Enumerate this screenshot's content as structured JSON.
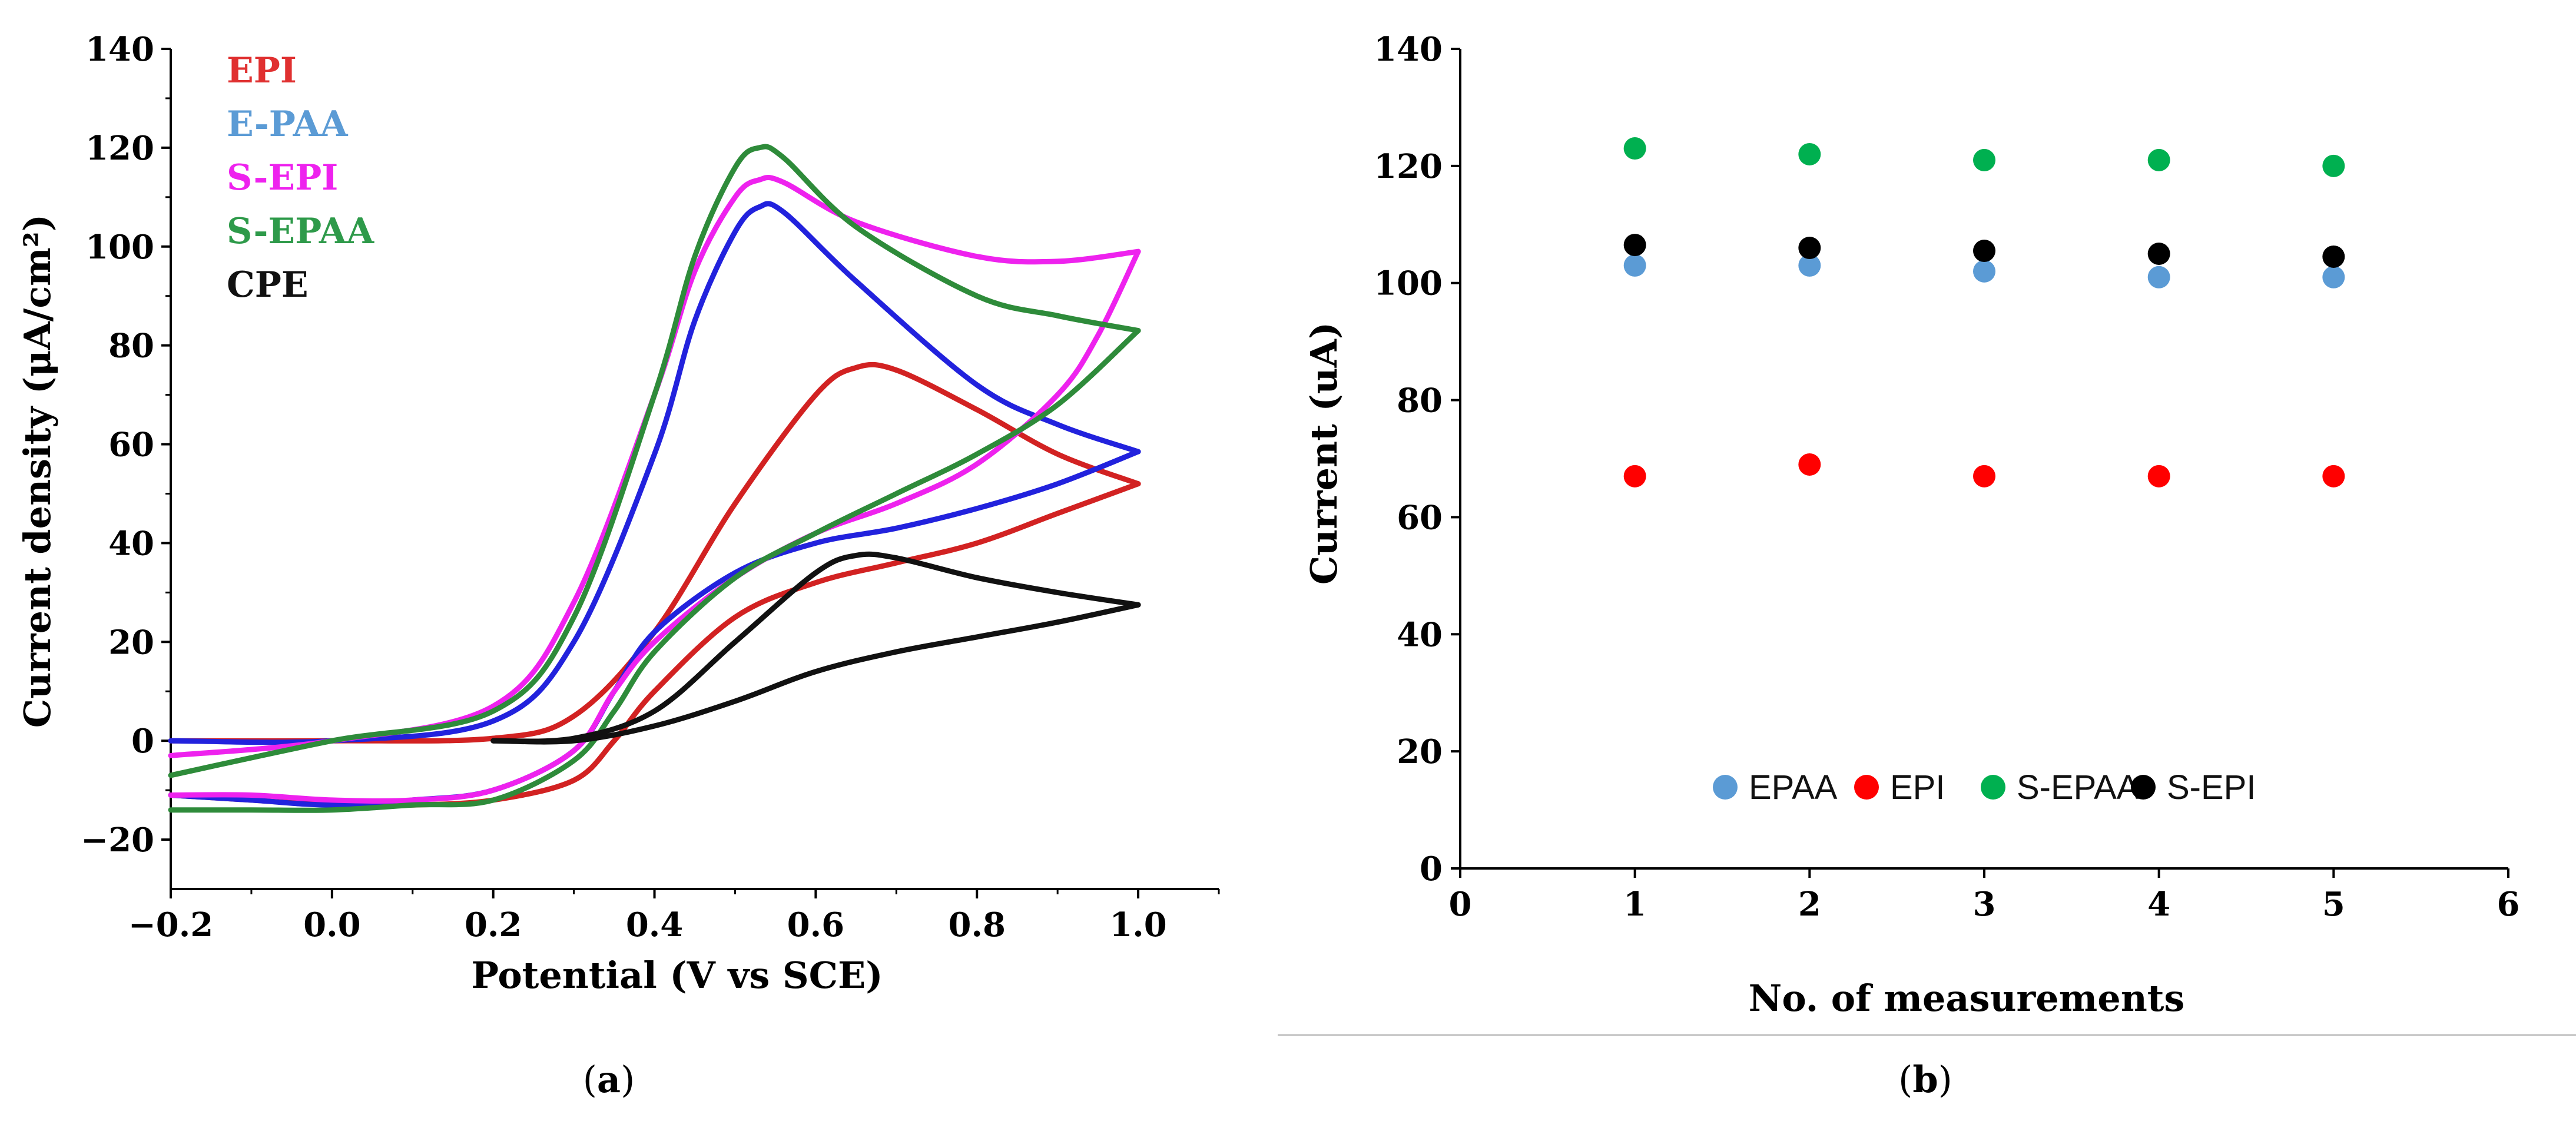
{
  "panels": {
    "a": {
      "caption_open": "(",
      "caption_letter": "a",
      "caption_close": ")"
    },
    "b": {
      "caption_open": "(",
      "caption_letter": "b",
      "caption_close": ")"
    }
  },
  "chart_data": [
    {
      "type": "line",
      "title": "",
      "xlabel": "Potential (V vs SCE)",
      "ylabel": "Current density (μA/cm²)",
      "xlim": [
        -0.2,
        1.1
      ],
      "ylim": [
        -30,
        140
      ],
      "xticks": [
        -0.2,
        0.0,
        0.2,
        0.4,
        0.6,
        0.8,
        1.0
      ],
      "xtick_labels": [
        "−0.2",
        "0.0",
        "0.2",
        "0.4",
        "0.6",
        "0.8",
        "1.0"
      ],
      "yticks": [
        -20,
        0,
        20,
        40,
        60,
        80,
        100,
        120,
        140
      ],
      "ytick_labels": [
        "−20",
        "0",
        "20",
        "40",
        "60",
        "80",
        "100",
        "120",
        "140"
      ],
      "legend": [
        {
          "label": "EPI",
          "color": "#e03030"
        },
        {
          "label": "E-PAA",
          "color": "#5b9bd5"
        },
        {
          "label": "S-EPI",
          "color": "#ee22ee"
        },
        {
          "label": "S-EPAA",
          "color": "#2e9a4a"
        },
        {
          "label": "CPE",
          "color": "#111111"
        }
      ],
      "series": [
        {
          "name": "EPI",
          "color": "#d22222",
          "forward": [
            [
              -0.2,
              0
            ],
            [
              0,
              0
            ],
            [
              0.2,
              0.5
            ],
            [
              0.3,
              5
            ],
            [
              0.4,
              22
            ],
            [
              0.5,
              48
            ],
            [
              0.6,
              70
            ],
            [
              0.65,
              75.5
            ],
            [
              0.7,
              75
            ],
            [
              0.8,
              67
            ],
            [
              0.9,
              58
            ],
            [
              1.0,
              52
            ]
          ],
          "reverse": [
            [
              1.0,
              52
            ],
            [
              0.9,
              46
            ],
            [
              0.8,
              40
            ],
            [
              0.7,
              36
            ],
            [
              0.6,
              32
            ],
            [
              0.5,
              25
            ],
            [
              0.4,
              10
            ],
            [
              0.35,
              0
            ],
            [
              0.3,
              -8
            ],
            [
              0.2,
              -12
            ],
            [
              0.1,
              -13
            ],
            [
              0,
              -13
            ],
            [
              -0.1,
              -12
            ],
            [
              -0.2,
              -11
            ]
          ]
        },
        {
          "name": "E-PAA",
          "color": "#2222dd",
          "forward": [
            [
              -0.2,
              0
            ],
            [
              0,
              0
            ],
            [
              0.2,
              4
            ],
            [
              0.3,
              20
            ],
            [
              0.4,
              58
            ],
            [
              0.45,
              85
            ],
            [
              0.5,
              103
            ],
            [
              0.53,
              108
            ],
            [
              0.56,
              107
            ],
            [
              0.65,
              93
            ],
            [
              0.8,
              72
            ],
            [
              0.9,
              64
            ],
            [
              1.0,
              58.5
            ]
          ],
          "reverse": [
            [
              1.0,
              58.5
            ],
            [
              0.9,
              52
            ],
            [
              0.8,
              47
            ],
            [
              0.7,
              43
            ],
            [
              0.6,
              40
            ],
            [
              0.5,
              34
            ],
            [
              0.4,
              22
            ],
            [
              0.35,
              10
            ],
            [
              0.3,
              -2
            ],
            [
              0.2,
              -10
            ],
            [
              0.1,
              -12
            ],
            [
              0,
              -13
            ],
            [
              -0.1,
              -12
            ],
            [
              -0.2,
              -11
            ]
          ]
        },
        {
          "name": "S-EPI",
          "color": "#ee22ee",
          "forward": [
            [
              -0.2,
              -3
            ],
            [
              0,
              0
            ],
            [
              0.2,
              7
            ],
            [
              0.3,
              28
            ],
            [
              0.4,
              70
            ],
            [
              0.45,
              95
            ],
            [
              0.5,
              110
            ],
            [
              0.53,
              113.5
            ],
            [
              0.56,
              113
            ],
            [
              0.65,
              105
            ],
            [
              0.8,
              98
            ],
            [
              0.9,
              97
            ],
            [
              1.0,
              99
            ]
          ],
          "reverse": [
            [
              1.0,
              99
            ],
            [
              0.95,
              82
            ],
            [
              0.9,
              70
            ],
            [
              0.8,
              56
            ],
            [
              0.7,
              48
            ],
            [
              0.6,
              42
            ],
            [
              0.5,
              33
            ],
            [
              0.4,
              20
            ],
            [
              0.35,
              10
            ],
            [
              0.3,
              -2
            ],
            [
              0.2,
              -10
            ],
            [
              0.1,
              -12
            ],
            [
              0,
              -12
            ],
            [
              -0.1,
              -11
            ],
            [
              -0.2,
              -11
            ]
          ]
        },
        {
          "name": "S-EPAA",
          "color": "#2e8b3a",
          "forward": [
            [
              -0.2,
              -7
            ],
            [
              0,
              0
            ],
            [
              0.2,
              6
            ],
            [
              0.3,
              25
            ],
            [
              0.4,
              70
            ],
            [
              0.45,
              98
            ],
            [
              0.5,
              116
            ],
            [
              0.53,
              120
            ],
            [
              0.56,
              118
            ],
            [
              0.65,
              104
            ],
            [
              0.8,
              90
            ],
            [
              0.9,
              86
            ],
            [
              1.0,
              83
            ]
          ],
          "reverse": [
            [
              1.0,
              83
            ],
            [
              0.9,
              68
            ],
            [
              0.8,
              58
            ],
            [
              0.7,
              50
            ],
            [
              0.6,
              42
            ],
            [
              0.5,
              33
            ],
            [
              0.4,
              18
            ],
            [
              0.35,
              6
            ],
            [
              0.3,
              -4
            ],
            [
              0.2,
              -12
            ],
            [
              0.1,
              -13
            ],
            [
              0,
              -14
            ],
            [
              -0.1,
              -14
            ],
            [
              -0.2,
              -14
            ]
          ]
        },
        {
          "name": "CPE",
          "color": "#111111",
          "forward": [
            [
              0.2,
              0
            ],
            [
              0.3,
              0.5
            ],
            [
              0.4,
              6
            ],
            [
              0.5,
              20
            ],
            [
              0.6,
              34
            ],
            [
              0.65,
              37.5
            ],
            [
              0.7,
              37
            ],
            [
              0.8,
              33
            ],
            [
              0.9,
              30
            ],
            [
              1.0,
              27.5
            ]
          ],
          "reverse": [
            [
              1.0,
              27.5
            ],
            [
              0.9,
              24
            ],
            [
              0.8,
              21
            ],
            [
              0.7,
              18
            ],
            [
              0.6,
              14
            ],
            [
              0.5,
              8
            ],
            [
              0.4,
              3
            ],
            [
              0.3,
              0
            ],
            [
              0.2,
              0
            ]
          ]
        }
      ]
    },
    {
      "type": "scatter",
      "title": "",
      "xlabel": "No. of measurements",
      "ylabel": "Current  (uA)",
      "xlim": [
        0,
        6
      ],
      "ylim": [
        0,
        140
      ],
      "xticks": [
        0,
        1,
        2,
        3,
        4,
        5,
        6
      ],
      "xtick_labels": [
        "0",
        "1",
        "2",
        "3",
        "4",
        "5",
        "6"
      ],
      "yticks": [
        0,
        20,
        40,
        60,
        80,
        100,
        120,
        140
      ],
      "ytick_labels": [
        "0",
        "20",
        "40",
        "60",
        "80",
        "100",
        "120",
        "140"
      ],
      "legend": [
        {
          "label": "EPAA",
          "color": "#5b9bd5"
        },
        {
          "label": "EPI",
          "color": "#ff0000"
        },
        {
          "label": "S-EPAA",
          "color": "#00b050"
        },
        {
          "label": "S-EPI",
          "color": "#000000"
        }
      ],
      "series": [
        {
          "name": "EPAA",
          "color": "#5b9bd5",
          "x": [
            1,
            2,
            3,
            4,
            5
          ],
          "y": [
            103,
            103,
            102,
            101,
            101
          ]
        },
        {
          "name": "EPI",
          "color": "#ff0000",
          "x": [
            1,
            2,
            3,
            4,
            5
          ],
          "y": [
            67,
            69,
            67,
            67,
            67
          ]
        },
        {
          "name": "S-EPAA",
          "color": "#00b050",
          "x": [
            1,
            2,
            3,
            4,
            5
          ],
          "y": [
            123,
            122,
            121,
            121,
            120
          ]
        },
        {
          "name": "S-EPI",
          "color": "#000000",
          "x": [
            1,
            2,
            3,
            4,
            5
          ],
          "y": [
            106.5,
            106,
            105.5,
            105,
            104.5
          ]
        }
      ]
    }
  ]
}
